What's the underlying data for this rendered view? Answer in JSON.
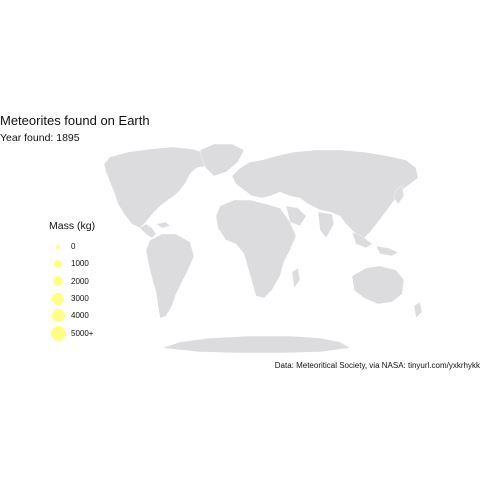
{
  "header": {
    "title": "Meteorites found on Earth",
    "subtitle": "Year found: 1895"
  },
  "legend": {
    "title": "Mass (kg)",
    "items": [
      {
        "label": "0",
        "value": 0
      },
      {
        "label": "1000",
        "value": 1000
      },
      {
        "label": "2000",
        "value": 2000
      },
      {
        "label": "3000",
        "value": 3000
      },
      {
        "label": "4000",
        "value": 4000
      },
      {
        "label": "5000+",
        "value": 5000
      }
    ]
  },
  "caption": "Data: Meteoritical Society, via NASA: tinyurl.com/yxkrhykk",
  "colors": {
    "land": "#dcdcdf",
    "point": "#ffff66",
    "background": "#ffffff"
  },
  "map": {
    "projection": "world (Winkel-like)",
    "points": []
  }
}
